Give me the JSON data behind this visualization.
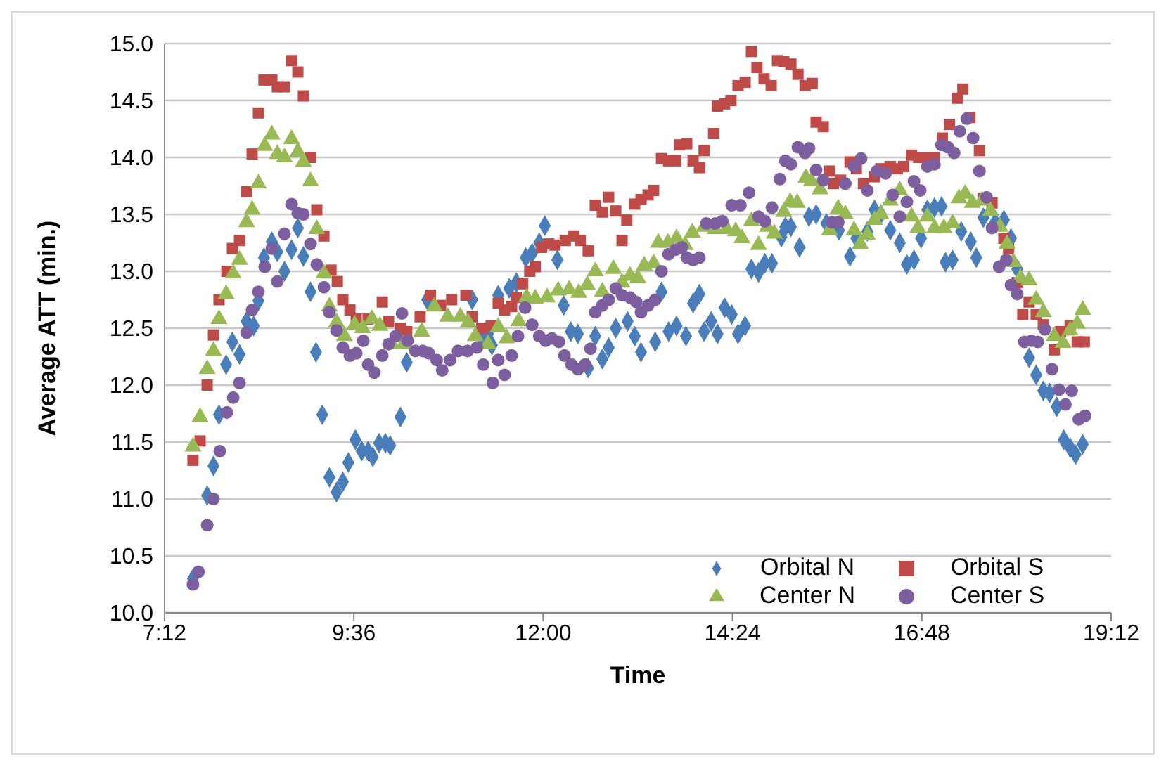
{
  "chart_data": {
    "type": "scatter",
    "xlabel": "Time",
    "ylabel": "Average ATT (min.)",
    "xlim": [
      7.2,
      19.2
    ],
    "xticks": [
      {
        "value": 7.2,
        "label": "7:12"
      },
      {
        "value": 9.6,
        "label": "9:36"
      },
      {
        "value": 12,
        "label": "12:00"
      },
      {
        "value": 14.4,
        "label": "14:24"
      },
      {
        "value": 16.8,
        "label": "16:48"
      },
      {
        "value": 19.2,
        "label": "19:12"
      }
    ],
    "ylim": [
      10,
      15
    ],
    "yticks": [
      {
        "value": 10,
        "label": "10.0"
      },
      {
        "value": 10.5,
        "label": "10.5"
      },
      {
        "value": 11,
        "label": "11.0"
      },
      {
        "value": 11.5,
        "label": "11.5"
      },
      {
        "value": 12,
        "label": "12.0"
      },
      {
        "value": 12.5,
        "label": "12.5"
      },
      {
        "value": 13,
        "label": "13.0"
      },
      {
        "value": 13.5,
        "label": "13.5"
      },
      {
        "value": 14,
        "label": "14.0"
      },
      {
        "value": 14.5,
        "label": "14.5"
      },
      {
        "value": 15,
        "label": "15.0"
      }
    ],
    "grid": "y",
    "legend": "bottom right",
    "series": [
      {
        "name": "Orbital N",
        "color": "#4a7ebb",
        "marker": "diamond",
        "x": [
          7.56,
          7.74,
          7.82,
          7.89,
          7.98,
          8.06,
          8.15,
          8.24,
          8.33,
          8.39,
          8.46,
          8.56,
          8.63,
          8.72,
          8.81,
          8.89,
          8.96,
          9.05,
          9.12,
          9.2,
          9.29,
          9.38,
          9.46,
          9.53,
          9.62,
          9.7,
          9.78,
          9.84,
          9.92,
          10.0,
          10.06,
          10.19,
          10.27,
          10.53,
          11.1,
          11.22,
          11.3,
          11.35,
          11.43,
          11.57,
          11.66,
          11.78,
          11.86,
          11.95,
          12.02,
          12.18,
          12.26,
          12.35,
          12.44,
          12.57,
          12.66,
          12.75,
          12.83,
          12.92,
          13.07,
          13.16,
          13.24,
          13.42,
          13.5,
          13.59,
          13.69,
          13.81,
          13.9,
          13.98,
          14.04,
          14.13,
          14.21,
          14.3,
          14.39,
          14.47,
          14.56,
          14.64,
          14.73,
          14.81,
          14.9,
          15.02,
          15.07,
          15.14,
          15.25,
          15.37,
          15.46,
          15.59,
          15.75,
          15.89,
          15.97,
          16.11,
          16.2,
          16.28,
          16.4,
          16.52,
          16.61,
          16.7,
          16.79,
          16.87,
          16.96,
          17.05,
          17.1,
          17.19,
          17.3,
          17.42,
          17.49,
          17.58,
          17.73,
          17.84,
          17.93,
          18.01,
          18.16,
          18.25,
          18.34,
          18.42,
          18.51,
          18.6,
          18.68,
          18.75,
          18.84
        ],
        "values": [
          10.3,
          11.03,
          11.29,
          11.74,
          12.18,
          12.38,
          12.27,
          12.56,
          12.52,
          12.74,
          13.12,
          13.26,
          13.17,
          13.0,
          13.19,
          13.38,
          13.13,
          12.82,
          12.29,
          11.74,
          11.19,
          11.06,
          11.15,
          11.32,
          11.52,
          11.42,
          11.42,
          11.37,
          11.49,
          11.49,
          11.47,
          11.72,
          12.2,
          12.75,
          12.75,
          12.43,
          12.45,
          12.35,
          12.79,
          12.85,
          12.9,
          13.12,
          13.16,
          13.25,
          13.4,
          13.1,
          12.7,
          12.47,
          12.45,
          12.15,
          12.43,
          12.23,
          12.33,
          12.5,
          12.56,
          12.43,
          12.29,
          12.38,
          12.82,
          12.47,
          12.52,
          12.43,
          12.72,
          12.8,
          12.47,
          12.56,
          12.45,
          12.68,
          12.62,
          12.45,
          12.52,
          13.02,
          12.99,
          13.07,
          13.07,
          13.3,
          13.39,
          13.39,
          13.21,
          13.48,
          13.5,
          13.42,
          13.36,
          13.13,
          13.29,
          13.35,
          13.54,
          13.5,
          13.36,
          13.25,
          13.06,
          13.1,
          13.29,
          13.54,
          13.56,
          13.57,
          13.08,
          13.1,
          13.35,
          13.26,
          13.12,
          13.47,
          13.43,
          13.45,
          13.29,
          13.02,
          12.24,
          12.09,
          11.95,
          11.93,
          11.81,
          11.52,
          11.45,
          11.39,
          11.48
        ]
      },
      {
        "name": "Orbital S",
        "color": "#be4b48",
        "marker": "square",
        "x": [
          7.56,
          7.65,
          7.74,
          7.82,
          7.89,
          7.99,
          8.06,
          8.15,
          8.24,
          8.31,
          8.39,
          8.46,
          8.56,
          8.63,
          8.72,
          8.81,
          8.89,
          8.96,
          9.05,
          9.13,
          9.22,
          9.31,
          9.39,
          9.46,
          9.55,
          9.63,
          9.78,
          9.96,
          10.04,
          10.19,
          10.27,
          10.44,
          10.57,
          10.7,
          10.84,
          11.02,
          11.1,
          11.22,
          11.34,
          11.43,
          11.51,
          11.6,
          11.66,
          11.74,
          11.83,
          11.9,
          11.98,
          12.07,
          12.15,
          12.28,
          12.39,
          12.47,
          12.57,
          12.66,
          12.75,
          12.83,
          12.92,
          13.0,
          13.06,
          13.16,
          13.24,
          13.33,
          13.4,
          13.5,
          13.59,
          13.68,
          13.73,
          13.82,
          13.9,
          13.98,
          14.04,
          14.16,
          14.21,
          14.3,
          14.38,
          14.47,
          14.56,
          14.64,
          14.71,
          14.8,
          14.89,
          14.97,
          15.05,
          15.14,
          15.23,
          15.32,
          15.41,
          15.46,
          15.55,
          15.63,
          15.68,
          15.77,
          15.89,
          15.97,
          16.06,
          16.2,
          16.28,
          16.4,
          16.49,
          16.57,
          16.67,
          16.76,
          16.88,
          16.96,
          17.06,
          17.15,
          17.25,
          17.32,
          17.41,
          17.53,
          17.58,
          17.69,
          17.84,
          17.9,
          18.01,
          18.08,
          18.16,
          18.25,
          18.34,
          18.48,
          18.56,
          18.68,
          18.77,
          18.86
        ],
        "values": [
          11.34,
          11.51,
          12.0,
          12.44,
          12.75,
          13.0,
          13.2,
          13.27,
          13.7,
          14.03,
          14.39,
          14.68,
          14.68,
          14.62,
          14.62,
          14.85,
          14.75,
          14.54,
          14.0,
          13.54,
          13.31,
          13.01,
          12.91,
          12.75,
          12.66,
          12.58,
          12.58,
          12.73,
          12.56,
          12.5,
          12.47,
          12.6,
          12.79,
          12.7,
          12.75,
          12.79,
          12.6,
          12.5,
          12.52,
          12.72,
          12.66,
          12.69,
          12.77,
          12.89,
          13.0,
          13.04,
          13.21,
          13.24,
          13.23,
          13.27,
          13.31,
          13.27,
          13.18,
          13.58,
          13.52,
          13.65,
          13.53,
          13.27,
          13.45,
          13.59,
          13.63,
          13.67,
          13.71,
          13.99,
          13.97,
          13.97,
          14.11,
          14.12,
          13.97,
          13.91,
          14.06,
          14.21,
          14.45,
          14.47,
          14.5,
          14.63,
          14.66,
          14.93,
          14.79,
          14.69,
          14.63,
          14.85,
          14.84,
          14.82,
          14.73,
          14.63,
          14.65,
          14.31,
          14.27,
          13.88,
          13.77,
          13.8,
          13.96,
          13.9,
          13.77,
          13.83,
          13.9,
          13.92,
          13.9,
          13.92,
          14.02,
          14.0,
          14.0,
          14.0,
          14.17,
          14.29,
          14.52,
          14.6,
          14.35,
          14.06,
          13.64,
          13.6,
          13.29,
          13.2,
          12.9,
          12.62,
          12.73,
          12.62,
          12.53,
          12.31,
          12.47,
          12.52,
          12.38,
          12.38
        ]
      },
      {
        "name": "Center N",
        "color": "#98b954",
        "marker": "triangle",
        "x": [
          7.56,
          7.65,
          7.74,
          7.82,
          7.89,
          7.98,
          8.07,
          8.15,
          8.24,
          8.31,
          8.39,
          8.47,
          8.56,
          8.63,
          8.72,
          8.81,
          8.89,
          8.96,
          9.05,
          9.13,
          9.22,
          9.29,
          9.38,
          9.48,
          9.61,
          9.71,
          9.83,
          9.93,
          10.08,
          10.23,
          10.46,
          10.62,
          10.79,
          10.95,
          11.05,
          11.14,
          11.3,
          11.43,
          11.54,
          11.69,
          11.79,
          11.9,
          12.05,
          12.19,
          12.33,
          12.45,
          12.56,
          12.66,
          12.75,
          12.89,
          13.0,
          13.1,
          13.2,
          13.28,
          13.4,
          13.46,
          13.58,
          13.69,
          13.8,
          13.89,
          14.04,
          14.18,
          14.33,
          14.44,
          14.52,
          14.64,
          14.73,
          14.84,
          14.93,
          15.05,
          15.13,
          15.22,
          15.33,
          15.4,
          15.51,
          15.63,
          15.74,
          15.83,
          15.94,
          16.02,
          16.11,
          16.2,
          16.28,
          16.4,
          16.52,
          16.67,
          16.75,
          16.87,
          16.96,
          17.08,
          17.19,
          17.27,
          17.35,
          17.44,
          17.56,
          17.67,
          17.79,
          17.88,
          17.96,
          18.05,
          18.16,
          18.25,
          18.34,
          18.48,
          18.59,
          18.68,
          18.77,
          18.84
        ],
        "values": [
          11.46,
          11.72,
          12.14,
          12.3,
          12.58,
          12.8,
          12.98,
          13.1,
          13.43,
          13.54,
          13.77,
          14.1,
          14.2,
          14.03,
          14.0,
          14.16,
          14.05,
          13.96,
          13.79,
          13.37,
          12.98,
          12.69,
          12.55,
          12.43,
          12.53,
          12.5,
          12.58,
          12.52,
          12.36,
          12.36,
          12.47,
          12.69,
          12.6,
          12.6,
          12.55,
          12.43,
          12.36,
          12.51,
          12.41,
          12.56,
          12.77,
          12.76,
          12.77,
          12.83,
          12.84,
          12.81,
          12.88,
          13.0,
          12.82,
          13.02,
          12.9,
          12.96,
          12.94,
          13.05,
          13.07,
          13.25,
          13.25,
          13.29,
          13.23,
          13.34,
          13.39,
          13.37,
          13.37,
          13.35,
          13.29,
          13.44,
          13.23,
          13.39,
          13.33,
          13.52,
          13.61,
          13.6,
          13.82,
          13.79,
          13.72,
          13.36,
          13.55,
          13.5,
          13.36,
          13.24,
          13.32,
          13.45,
          13.5,
          13.62,
          13.71,
          13.48,
          13.38,
          13.48,
          13.38,
          13.38,
          13.42,
          13.64,
          13.68,
          13.6,
          13.62,
          13.53,
          13.39,
          13.24,
          13.08,
          12.94,
          12.92,
          12.75,
          12.64,
          12.43,
          12.37,
          12.48,
          12.54,
          12.66
        ]
      },
      {
        "name": "Center S",
        "color": "#7d5fa0",
        "marker": "circle",
        "x": [
          7.56,
          7.63,
          7.74,
          7.82,
          7.9,
          7.99,
          8.07,
          8.15,
          8.24,
          8.31,
          8.39,
          8.47,
          8.56,
          8.63,
          8.72,
          8.81,
          8.89,
          8.96,
          9.05,
          9.13,
          9.22,
          9.29,
          9.38,
          9.46,
          9.55,
          9.63,
          9.72,
          9.78,
          9.86,
          9.96,
          10.04,
          10.13,
          10.21,
          10.28,
          10.38,
          10.47,
          10.55,
          10.65,
          10.72,
          10.82,
          10.92,
          11.04,
          11.16,
          11.24,
          11.36,
          11.43,
          11.51,
          11.6,
          11.68,
          11.77,
          11.86,
          11.95,
          12.03,
          12.11,
          12.2,
          12.27,
          12.36,
          12.44,
          12.53,
          12.6,
          12.66,
          12.75,
          12.83,
          12.92,
          13.0,
          13.1,
          13.18,
          13.24,
          13.33,
          13.42,
          13.5,
          13.59,
          13.68,
          13.76,
          13.82,
          13.9,
          13.98,
          14.07,
          14.18,
          14.27,
          14.39,
          14.5,
          14.61,
          14.73,
          14.81,
          14.9,
          15.0,
          15.07,
          15.14,
          15.23,
          15.32,
          15.37,
          15.46,
          15.55,
          15.66,
          15.74,
          15.83,
          15.94,
          16.03,
          16.11,
          16.23,
          16.34,
          16.43,
          16.52,
          16.61,
          16.7,
          16.78,
          16.87,
          16.96,
          17.05,
          17.13,
          17.21,
          17.28,
          17.37,
          17.45,
          17.53,
          17.62,
          17.69,
          17.78,
          17.87,
          17.93,
          18.01,
          18.1,
          18.19,
          18.27,
          18.36,
          18.45,
          18.54,
          18.62,
          18.7,
          18.79,
          18.87
        ],
        "values": [
          10.25,
          10.36,
          10.77,
          11.0,
          11.42,
          11.76,
          11.89,
          12.02,
          12.46,
          12.66,
          12.82,
          13.04,
          13.2,
          12.91,
          13.33,
          13.59,
          13.51,
          13.5,
          13.24,
          13.06,
          12.86,
          12.64,
          12.48,
          12.33,
          12.26,
          12.28,
          12.39,
          12.18,
          12.11,
          12.26,
          12.36,
          12.43,
          12.63,
          12.39,
          12.3,
          12.3,
          12.28,
          12.22,
          12.13,
          12.22,
          12.3,
          12.3,
          12.33,
          12.18,
          12.02,
          12.22,
          12.09,
          12.26,
          12.43,
          12.68,
          12.53,
          12.43,
          12.39,
          12.41,
          12.38,
          12.26,
          12.18,
          12.14,
          12.18,
          12.32,
          12.64,
          12.7,
          12.75,
          12.85,
          12.79,
          12.77,
          12.73,
          12.64,
          12.7,
          12.75,
          13.0,
          13.15,
          13.19,
          13.21,
          13.12,
          13.1,
          13.12,
          13.42,
          13.42,
          13.44,
          13.58,
          13.58,
          13.69,
          13.48,
          13.44,
          13.56,
          13.81,
          13.97,
          13.94,
          14.09,
          14.04,
          14.08,
          13.89,
          13.8,
          13.43,
          13.43,
          13.77,
          13.92,
          13.99,
          13.71,
          13.88,
          13.86,
          13.67,
          13.48,
          13.61,
          13.79,
          13.71,
          13.92,
          13.94,
          14.11,
          14.09,
          14.04,
          14.23,
          14.34,
          14.17,
          13.88,
          13.65,
          13.38,
          13.04,
          13.1,
          12.88,
          12.8,
          12.38,
          12.39,
          12.38,
          12.49,
          12.14,
          11.96,
          11.83,
          11.95,
          11.7,
          11.73
        ]
      }
    ]
  }
}
